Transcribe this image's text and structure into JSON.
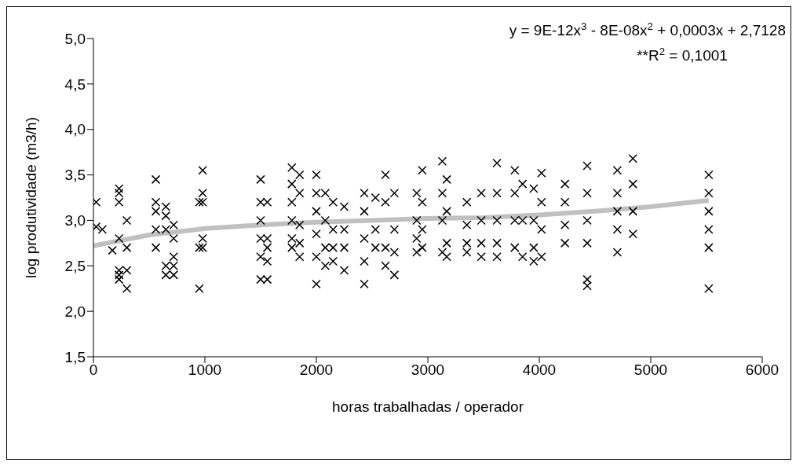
{
  "chart_data": {
    "type": "scatter",
    "xlabel": "horas trabalhadas / operador",
    "ylabel": "log produtividade (m3/h)",
    "xlim": [
      0,
      6000
    ],
    "xticks": [
      0,
      1000,
      2000,
      3000,
      4000,
      5000,
      6000
    ],
    "ylim": [
      1.5,
      5
    ],
    "yticks": [
      {
        "value": 1.5,
        "label": "1,5"
      },
      {
        "value": 2,
        "label": "2,0"
      },
      {
        "value": 2.5,
        "label": "2,5"
      },
      {
        "value": 3,
        "label": "3,0"
      },
      {
        "value": 3.5,
        "label": "3,5"
      },
      {
        "value": 4,
        "label": "4,0"
      },
      {
        "value": 4.5,
        "label": "4,5"
      },
      {
        "value": 5,
        "label": "5,0"
      }
    ],
    "grid": false,
    "legend": false,
    "marker": "cross",
    "annotations": [
      "y = 9E-12x$^{3}$ - 8E-08x$^{2}$ + 0,0003x + 2,7128",
      "**R$^{2}$ = 0,1001"
    ],
    "series": [
      {
        "color": "#000000",
        "x": [
          25,
          25,
          80,
          170,
          230,
          230,
          230,
          230,
          230,
          230,
          230,
          300,
          300,
          300,
          300,
          560,
          560,
          560,
          560,
          560,
          650,
          650,
          650,
          650,
          650,
          720,
          720,
          720,
          720,
          720,
          950,
          950,
          950,
          980,
          980,
          980,
          980,
          980,
          1500,
          1500,
          1500,
          1500,
          1500,
          1500,
          1560,
          1560,
          1560,
          1560,
          1560,
          1780,
          1780,
          1780,
          1780,
          1780,
          1780,
          1850,
          1850,
          1850,
          1850,
          1850,
          2000,
          2000,
          2000,
          2000,
          2000,
          2000,
          2080,
          2080,
          2080,
          2080,
          2150,
          2150,
          2150,
          2150,
          2250,
          2250,
          2250,
          2250,
          2430,
          2430,
          2430,
          2430,
          2430,
          2530,
          2530,
          2530,
          2620,
          2620,
          2620,
          2620,
          2700,
          2700,
          2700,
          2700,
          2900,
          2900,
          2900,
          2900,
          2950,
          2950,
          2950,
          2950,
          3130,
          3130,
          3130,
          3130,
          3170,
          3170,
          3170,
          3170,
          3350,
          3350,
          3350,
          3350,
          3480,
          3480,
          3480,
          3480,
          3620,
          3620,
          3620,
          3620,
          3620,
          3780,
          3780,
          3780,
          3780,
          3850,
          3850,
          3850,
          3950,
          3950,
          3950,
          3950,
          4020,
          4020,
          4020,
          4020,
          4230,
          4230,
          4230,
          4230,
          4430,
          4430,
          4430,
          4430,
          4430,
          4430,
          4700,
          4700,
          4700,
          4700,
          4700,
          4840,
          4840,
          4840,
          4840,
          5520,
          5520,
          5520,
          5520,
          5520,
          5520
        ],
        "values": [
          3.2,
          2.93,
          2.9,
          2.67,
          3.35,
          3.3,
          3.2,
          2.8,
          2.45,
          2.4,
          2.35,
          2.25,
          2.45,
          2.7,
          3.0,
          3.45,
          3.2,
          3.1,
          2.9,
          2.7,
          3.15,
          3.05,
          2.9,
          2.5,
          2.4,
          2.95,
          2.8,
          2.6,
          2.5,
          2.4,
          3.2,
          2.7,
          2.25,
          3.55,
          3.3,
          3.2,
          2.8,
          2.7,
          3.45,
          3.2,
          3.0,
          2.8,
          2.6,
          2.35,
          3.2,
          2.8,
          2.7,
          2.55,
          2.35,
          3.58,
          3.4,
          3.2,
          3.0,
          2.8,
          2.7,
          3.5,
          3.3,
          2.95,
          2.75,
          2.6,
          3.5,
          3.3,
          3.1,
          2.85,
          2.6,
          2.3,
          3.3,
          3.0,
          2.7,
          2.5,
          3.2,
          2.9,
          2.7,
          2.55,
          3.15,
          2.9,
          2.7,
          2.45,
          3.3,
          3.1,
          2.8,
          2.55,
          2.3,
          3.25,
          2.9,
          2.7,
          3.5,
          3.2,
          2.7,
          2.5,
          3.3,
          2.9,
          2.65,
          2.4,
          3.3,
          3.0,
          2.8,
          2.65,
          3.55,
          3.2,
          2.9,
          2.7,
          3.65,
          3.3,
          3.0,
          2.65,
          3.45,
          3.1,
          2.75,
          2.6,
          3.2,
          2.95,
          2.75,
          2.65,
          3.3,
          3.0,
          2.75,
          2.6,
          3.63,
          3.3,
          3.0,
          2.75,
          2.6,
          3.55,
          3.3,
          3.0,
          2.7,
          3.4,
          3.0,
          2.6,
          3.35,
          3.0,
          2.7,
          2.55,
          3.52,
          3.2,
          2.9,
          2.6,
          3.4,
          3.2,
          2.95,
          2.75,
          3.6,
          3.3,
          3.0,
          2.75,
          2.35,
          2.28,
          3.55,
          3.3,
          3.1,
          2.9,
          2.65,
          3.68,
          3.4,
          3.1,
          2.85,
          3.5,
          3.3,
          3.1,
          2.9,
          2.7,
          2.25
        ]
      },
      {
        "type": "line",
        "color": "#c0c0c0",
        "marker": "none",
        "x": [
          0,
          500,
          1000,
          1500,
          2000,
          2500,
          3000,
          3500,
          4000,
          4500,
          5000,
          5520
        ],
        "values": [
          2.72,
          2.84,
          2.91,
          2.95,
          2.98,
          3.0,
          3.02,
          3.03,
          3.06,
          3.1,
          3.15,
          3.22
        ]
      }
    ]
  }
}
